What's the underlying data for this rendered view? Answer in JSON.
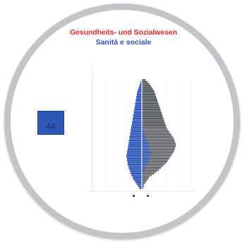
{
  "header": {
    "title_de": "Gesundheits- und Sozialwesen",
    "title_it": "Sanità e sociale"
  },
  "badge": {
    "label": "",
    "value": "44"
  },
  "footnote": {
    "line1": "",
    "line2": ""
  },
  "chart_data": {
    "type": "bar",
    "subtype": "population-pyramid",
    "title": "Gesundheits- und Sozialwesen / Sanità e sociale",
    "orientation": "horizontal",
    "age_bins": 60,
    "series": [
      {
        "name": "",
        "side": "left",
        "color": "#2d55b7",
        "values": [
          4,
          6,
          8,
          10,
          12,
          14,
          15,
          17,
          18,
          19,
          20,
          21,
          22,
          23,
          23,
          24,
          24,
          25,
          25,
          24,
          24,
          23,
          23,
          22,
          22,
          21,
          21,
          20,
          20,
          19,
          19,
          18,
          18,
          17,
          17,
          16,
          16,
          15,
          15,
          14,
          14,
          13,
          13,
          12,
          12,
          11,
          11,
          10,
          10,
          9,
          9,
          8,
          8,
          7,
          6,
          5,
          4,
          3,
          2,
          1
        ]
      },
      {
        "name": "",
        "side": "right",
        "color": "#2d55b7",
        "values": [
          0,
          0,
          0,
          0,
          0,
          0,
          0,
          1,
          2,
          3,
          4,
          5,
          6,
          8,
          10,
          11,
          12,
          13,
          14,
          14,
          14,
          13,
          12,
          11,
          10,
          9,
          8,
          7,
          6,
          5,
          4,
          3,
          2,
          2,
          1,
          1,
          1,
          1,
          1,
          1,
          1,
          1,
          1,
          1,
          1,
          1,
          1,
          1,
          1,
          1,
          1,
          1,
          1,
          1,
          1,
          1,
          1,
          1,
          0,
          0
        ]
      },
      {
        "name": "",
        "side": "right",
        "color": "#55585d",
        "values": [
          2,
          3,
          4,
          6,
          8,
          10,
          12,
          16,
          20,
          24,
          28,
          31,
          34,
          37,
          40,
          42,
          44,
          46,
          48,
          50,
          52,
          53,
          54,
          55,
          55,
          54,
          53,
          52,
          50,
          48,
          46,
          44,
          42,
          40,
          39,
          38,
          37,
          36,
          35,
          34,
          33,
          32,
          31,
          30,
          29,
          28,
          27,
          26,
          25,
          24,
          23,
          22,
          21,
          20,
          18,
          16,
          14,
          12,
          9,
          6
        ]
      }
    ],
    "xlim": [
      -80,
      80
    ],
    "grid": true,
    "legend_position": "bottom-center"
  }
}
